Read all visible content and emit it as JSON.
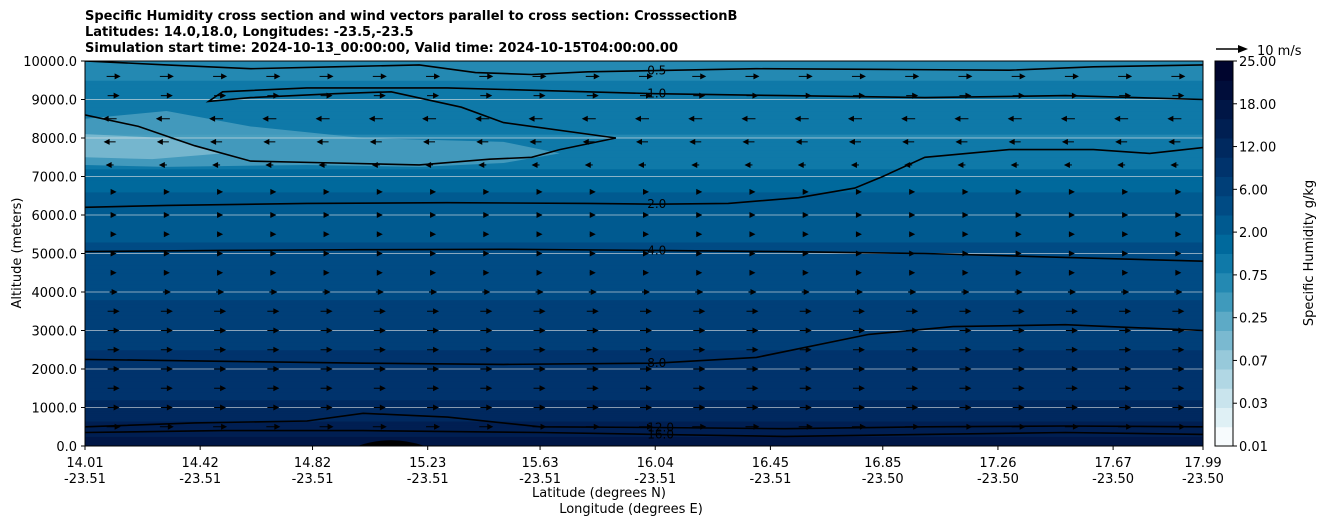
{
  "chart_data": {
    "type": "contour",
    "title": [
      "Specific Humidity cross section and wind vectors parallel to cross section: CrosssectionB",
      "Latitudes: 14.0,18.0, Longitudes: -23.5,-23.5",
      "Simulation start time: 2024-10-13_00:00:00, Valid time: 2024-10-15T04:00:00.00"
    ],
    "xlabel": "Latitude (degrees N)",
    "xlabel2": "Longitude (degrees E)",
    "ylabel": "Altitude (meters)",
    "x_ticks": [
      {
        "lat": "14.01",
        "lon": "-23.51"
      },
      {
        "lat": "14.42",
        "lon": "-23.51"
      },
      {
        "lat": "14.82",
        "lon": "-23.51"
      },
      {
        "lat": "15.23",
        "lon": "-23.51"
      },
      {
        "lat": "15.63",
        "lon": "-23.51"
      },
      {
        "lat": "16.04",
        "lon": "-23.51"
      },
      {
        "lat": "16.45",
        "lon": "-23.51"
      },
      {
        "lat": "16.85",
        "lon": "-23.50"
      },
      {
        "lat": "17.26",
        "lon": "-23.50"
      },
      {
        "lat": "17.67",
        "lon": "-23.50"
      },
      {
        "lat": "17.99",
        "lon": "-23.50"
      }
    ],
    "x_lat_range": [
      14.01,
      17.99
    ],
    "y_ticks": [
      "0.0",
      "1000.0",
      "2000.0",
      "3000.0",
      "4000.0",
      "5000.0",
      "6000.0",
      "7000.0",
      "8000.0",
      "9000.0",
      "10000.0"
    ],
    "ylim": [
      0,
      10000
    ],
    "grid": "horizontal",
    "colorbar": {
      "label": "Specific Humidity g/kg",
      "ticks": [
        "0.01",
        "0.03",
        "0.07",
        "0.25",
        "0.75",
        "2.00",
        "6.00",
        "12.00",
        "18.00",
        "25.00"
      ],
      "colors": [
        "#f7fbfd",
        "#dff0f5",
        "#c9e4ed",
        "#b1d7e4",
        "#97c9da",
        "#7ab9d0",
        "#5daac6",
        "#3f9abc",
        "#2489b2",
        "#0f79a8",
        "#00699c",
        "#005a90",
        "#004b84",
        "#003f78",
        "#00336c",
        "#00295f",
        "#001f52",
        "#001646",
        "#000d3a",
        "#00052e"
      ]
    },
    "contour_levels": [
      "0.5",
      "1.0",
      "2.0",
      "4.0",
      "8.0",
      "12.0",
      "16.0"
    ],
    "contours": [
      {
        "level": "0.5",
        "points": [
          [
            14.01,
            10000
          ],
          [
            14.3,
            9900
          ],
          [
            14.6,
            9800
          ],
          [
            14.9,
            9850
          ],
          [
            15.2,
            9900
          ],
          [
            15.4,
            9700
          ],
          [
            15.6,
            9650
          ],
          [
            15.8,
            9720
          ],
          [
            16.04,
            9750
          ],
          [
            16.4,
            9800
          ],
          [
            16.9,
            9780
          ],
          [
            17.3,
            9760
          ],
          [
            17.6,
            9850
          ],
          [
            17.99,
            9900
          ]
        ]
      },
      {
        "level": "1.0",
        "points": [
          [
            14.01,
            8600
          ],
          [
            14.2,
            8300
          ],
          [
            14.4,
            7800
          ],
          [
            14.6,
            7400
          ],
          [
            14.9,
            7350
          ],
          [
            15.2,
            7300
          ],
          [
            15.45,
            7450
          ],
          [
            15.6,
            7500
          ],
          [
            15.7,
            7700
          ],
          [
            15.9,
            8000
          ],
          [
            15.5,
            8400
          ],
          [
            15.35,
            8800
          ],
          [
            15.1,
            9200
          ],
          [
            14.9,
            9150
          ],
          [
            14.6,
            9050
          ],
          [
            14.45,
            8950
          ],
          [
            14.5,
            9200
          ],
          [
            14.8,
            9300
          ],
          [
            15.3,
            9300
          ],
          [
            16.04,
            9150
          ],
          [
            16.5,
            9100
          ],
          [
            17.0,
            9050
          ],
          [
            17.5,
            9100
          ],
          [
            17.99,
            9000
          ]
        ]
      },
      {
        "level": "2.0",
        "points": [
          [
            14.01,
            6200
          ],
          [
            14.3,
            6250
          ],
          [
            14.8,
            6300
          ],
          [
            15.3,
            6320
          ],
          [
            15.8,
            6300
          ],
          [
            16.04,
            6280
          ],
          [
            16.3,
            6300
          ],
          [
            16.55,
            6450
          ],
          [
            16.75,
            6700
          ],
          [
            16.85,
            7000
          ],
          [
            17.0,
            7500
          ],
          [
            17.3,
            7700
          ],
          [
            17.6,
            7700
          ],
          [
            17.8,
            7600
          ],
          [
            17.99,
            7750
          ]
        ]
      },
      {
        "level": "4.0",
        "points": [
          [
            14.01,
            5050
          ],
          [
            14.5,
            5080
          ],
          [
            15.0,
            5100
          ],
          [
            15.5,
            5110
          ],
          [
            16.04,
            5080
          ],
          [
            16.5,
            5050
          ],
          [
            17.0,
            5000
          ],
          [
            17.5,
            4900
          ],
          [
            17.99,
            4800
          ]
        ]
      },
      {
        "level": "8.0",
        "points": [
          [
            14.01,
            2250
          ],
          [
            14.5,
            2200
          ],
          [
            15.0,
            2150
          ],
          [
            15.5,
            2120
          ],
          [
            16.04,
            2150
          ],
          [
            16.4,
            2300
          ],
          [
            16.8,
            2900
          ],
          [
            17.1,
            3100
          ],
          [
            17.5,
            3150
          ],
          [
            17.99,
            3000
          ]
        ]
      },
      {
        "level": "12.0",
        "points": [
          [
            14.01,
            500
          ],
          [
            14.4,
            600
          ],
          [
            14.8,
            650
          ],
          [
            15.0,
            850
          ],
          [
            15.3,
            750
          ],
          [
            15.63,
            500
          ],
          [
            16.04,
            480
          ],
          [
            16.5,
            450
          ],
          [
            17.0,
            500
          ],
          [
            17.5,
            520
          ],
          [
            17.99,
            500
          ]
        ]
      },
      {
        "level": "16.0",
        "points": [
          [
            14.01,
            350
          ],
          [
            14.5,
            400
          ],
          [
            15.0,
            400
          ],
          [
            15.63,
            350
          ],
          [
            16.04,
            300
          ],
          [
            16.5,
            250
          ],
          [
            17.0,
            300
          ],
          [
            17.5,
            350
          ],
          [
            17.99,
            300
          ]
        ]
      }
    ],
    "wind_reference": "10 m/s",
    "wind_levels": [
      {
        "z": 9600,
        "u": 2.5
      },
      {
        "z": 9100,
        "u": 2.0
      },
      {
        "z": 8500,
        "u": -2.5
      },
      {
        "z": 7900,
        "u": -2.0
      },
      {
        "z": 7300,
        "u": -1.0
      },
      {
        "z": 6600,
        "u": 0.5
      },
      {
        "z": 6000,
        "u": 0.5
      },
      {
        "z": 5500,
        "u": 0.5
      },
      {
        "z": 5000,
        "u": 0.5
      },
      {
        "z": 4500,
        "u": 0.5
      },
      {
        "z": 4000,
        "u": 1.0
      },
      {
        "z": 3500,
        "u": 2.0
      },
      {
        "z": 3000,
        "u": 2.0
      },
      {
        "z": 2500,
        "u": 2.0
      },
      {
        "z": 2000,
        "u": 2.0
      },
      {
        "z": 1500,
        "u": 2.0
      },
      {
        "z": 1000,
        "u": 2.0
      },
      {
        "z": 500,
        "u": 2.5
      }
    ],
    "humidity_profile": [
      {
        "z": 0,
        "q": 18.0
      },
      {
        "z": 500,
        "q": 14.0
      },
      {
        "z": 1000,
        "q": 11.0
      },
      {
        "z": 2000,
        "q": 8.5
      },
      {
        "z": 3000,
        "q": 7.0
      },
      {
        "z": 4000,
        "q": 5.0
      },
      {
        "z": 5000,
        "q": 4.0
      },
      {
        "z": 6000,
        "q": 2.5
      },
      {
        "z": 7000,
        "q": 1.5
      },
      {
        "z": 8000,
        "q": 0.8
      },
      {
        "z": 9000,
        "q": 1.0
      },
      {
        "z": 10000,
        "q": 0.6
      }
    ]
  }
}
